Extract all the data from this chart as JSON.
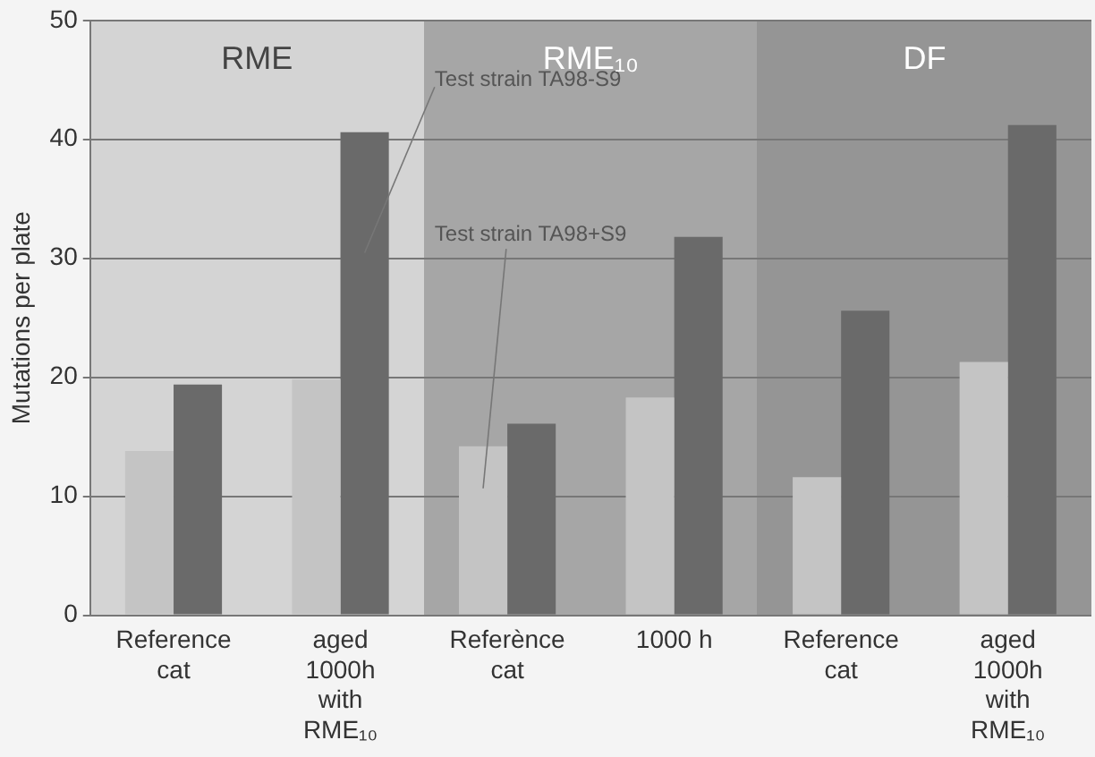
{
  "chart_data": {
    "type": "bar",
    "ylabel": "Mutations per plate",
    "categories": [
      "Reference\ncat",
      "aged\n1000h\nwith\nRME₁₀",
      "Referènce\ncat",
      "1000 h",
      "Reference\ncat",
      "aged\n1000h\nwith\nRME₁₀"
    ],
    "series": [
      {
        "name": "Test strain TA98+S9",
        "color": "#c4c4c4",
        "values": [
          13.8,
          19.8,
          14.2,
          18.3,
          11.6,
          21.3
        ]
      },
      {
        "name": "Test strain TA98-S9",
        "color": "#6a6a6a",
        "values": [
          19.4,
          40.6,
          16.1,
          31.8,
          25.6,
          41.2
        ]
      }
    ],
    "ylim": [
      0,
      50
    ],
    "yticks": [
      0,
      10,
      20,
      30,
      40,
      50
    ],
    "grid": "y",
    "legend": false,
    "annotations": [
      "RME",
      "RME₁₀",
      "DF"
    ]
  }
}
